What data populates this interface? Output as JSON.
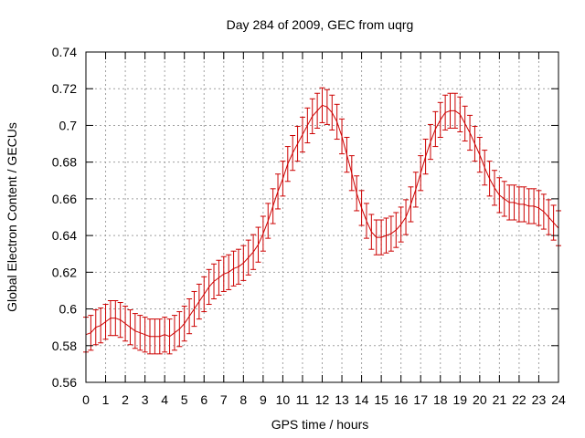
{
  "chart_data": {
    "type": "line",
    "title": "Day 284 of 2009, GEC from uqrg",
    "xlabel": "GPS time / hours",
    "ylabel": "Global Electron Content / GECUs",
    "xlim": [
      0,
      24
    ],
    "ylim": [
      0.56,
      0.74
    ],
    "xticks": [
      0,
      1,
      2,
      3,
      4,
      5,
      6,
      7,
      8,
      9,
      10,
      11,
      12,
      13,
      14,
      15,
      16,
      17,
      18,
      19,
      20,
      21,
      22,
      23,
      24
    ],
    "yticks": [
      0.56,
      0.58,
      0.6,
      0.62,
      0.64,
      0.66,
      0.68,
      0.7,
      0.72,
      0.74
    ],
    "ytick_labels": [
      "0.56",
      "0.58",
      "0.6",
      "0.62",
      "0.64",
      "0.66",
      "0.68",
      "0.7",
      "0.72",
      "0.74"
    ],
    "grid": true,
    "error_bar_halfwidth": 0.0095,
    "colors": {
      "series": "#cc0000",
      "grid": "#a0a0a0",
      "axis": "#000000"
    },
    "series": [
      {
        "x": [
          0,
          0.25,
          0.5,
          0.75,
          1,
          1.25,
          1.5,
          1.75,
          2,
          2.25,
          2.5,
          2.75,
          3,
          3.25,
          3.5,
          3.75,
          4,
          4.25,
          4.5,
          4.75,
          5,
          5.25,
          5.5,
          5.75,
          6,
          6.25,
          6.5,
          6.75,
          7,
          7.25,
          7.5,
          7.75,
          8,
          8.25,
          8.5,
          8.75,
          9,
          9.25,
          9.5,
          9.75,
          10,
          10.25,
          10.5,
          10.75,
          11,
          11.25,
          11.5,
          11.75,
          12,
          12.25,
          12.5,
          12.75,
          13,
          13.25,
          13.5,
          13.75,
          14,
          14.25,
          14.5,
          14.75,
          15,
          15.25,
          15.5,
          15.75,
          16,
          16.25,
          16.5,
          16.75,
          17,
          17.25,
          17.5,
          17.75,
          18,
          18.25,
          18.5,
          18.75,
          19,
          19.25,
          19.5,
          19.75,
          20,
          20.25,
          20.5,
          20.75,
          21,
          21.25,
          21.5,
          21.75,
          22,
          22.25,
          22.5,
          22.75,
          23,
          23.25,
          23.5,
          23.75,
          24
        ],
        "y": [
          0.586,
          0.587,
          0.59,
          0.591,
          0.593,
          0.595,
          0.595,
          0.594,
          0.592,
          0.59,
          0.588,
          0.587,
          0.586,
          0.585,
          0.585,
          0.585,
          0.586,
          0.585,
          0.587,
          0.589,
          0.592,
          0.596,
          0.6,
          0.604,
          0.608,
          0.612,
          0.615,
          0.617,
          0.619,
          0.62,
          0.622,
          0.623,
          0.625,
          0.628,
          0.631,
          0.635,
          0.641,
          0.648,
          0.656,
          0.664,
          0.671,
          0.679,
          0.685,
          0.69,
          0.695,
          0.7,
          0.705,
          0.708,
          0.711,
          0.71,
          0.707,
          0.702,
          0.694,
          0.684,
          0.674,
          0.663,
          0.655,
          0.648,
          0.642,
          0.639,
          0.639,
          0.64,
          0.641,
          0.643,
          0.646,
          0.65,
          0.657,
          0.665,
          0.674,
          0.683,
          0.691,
          0.698,
          0.703,
          0.707,
          0.708,
          0.708,
          0.706,
          0.701,
          0.696,
          0.69,
          0.684,
          0.677,
          0.671,
          0.666,
          0.662,
          0.66,
          0.658,
          0.658,
          0.657,
          0.657,
          0.656,
          0.656,
          0.655,
          0.653,
          0.65,
          0.647,
          0.644
        ]
      }
    ]
  }
}
